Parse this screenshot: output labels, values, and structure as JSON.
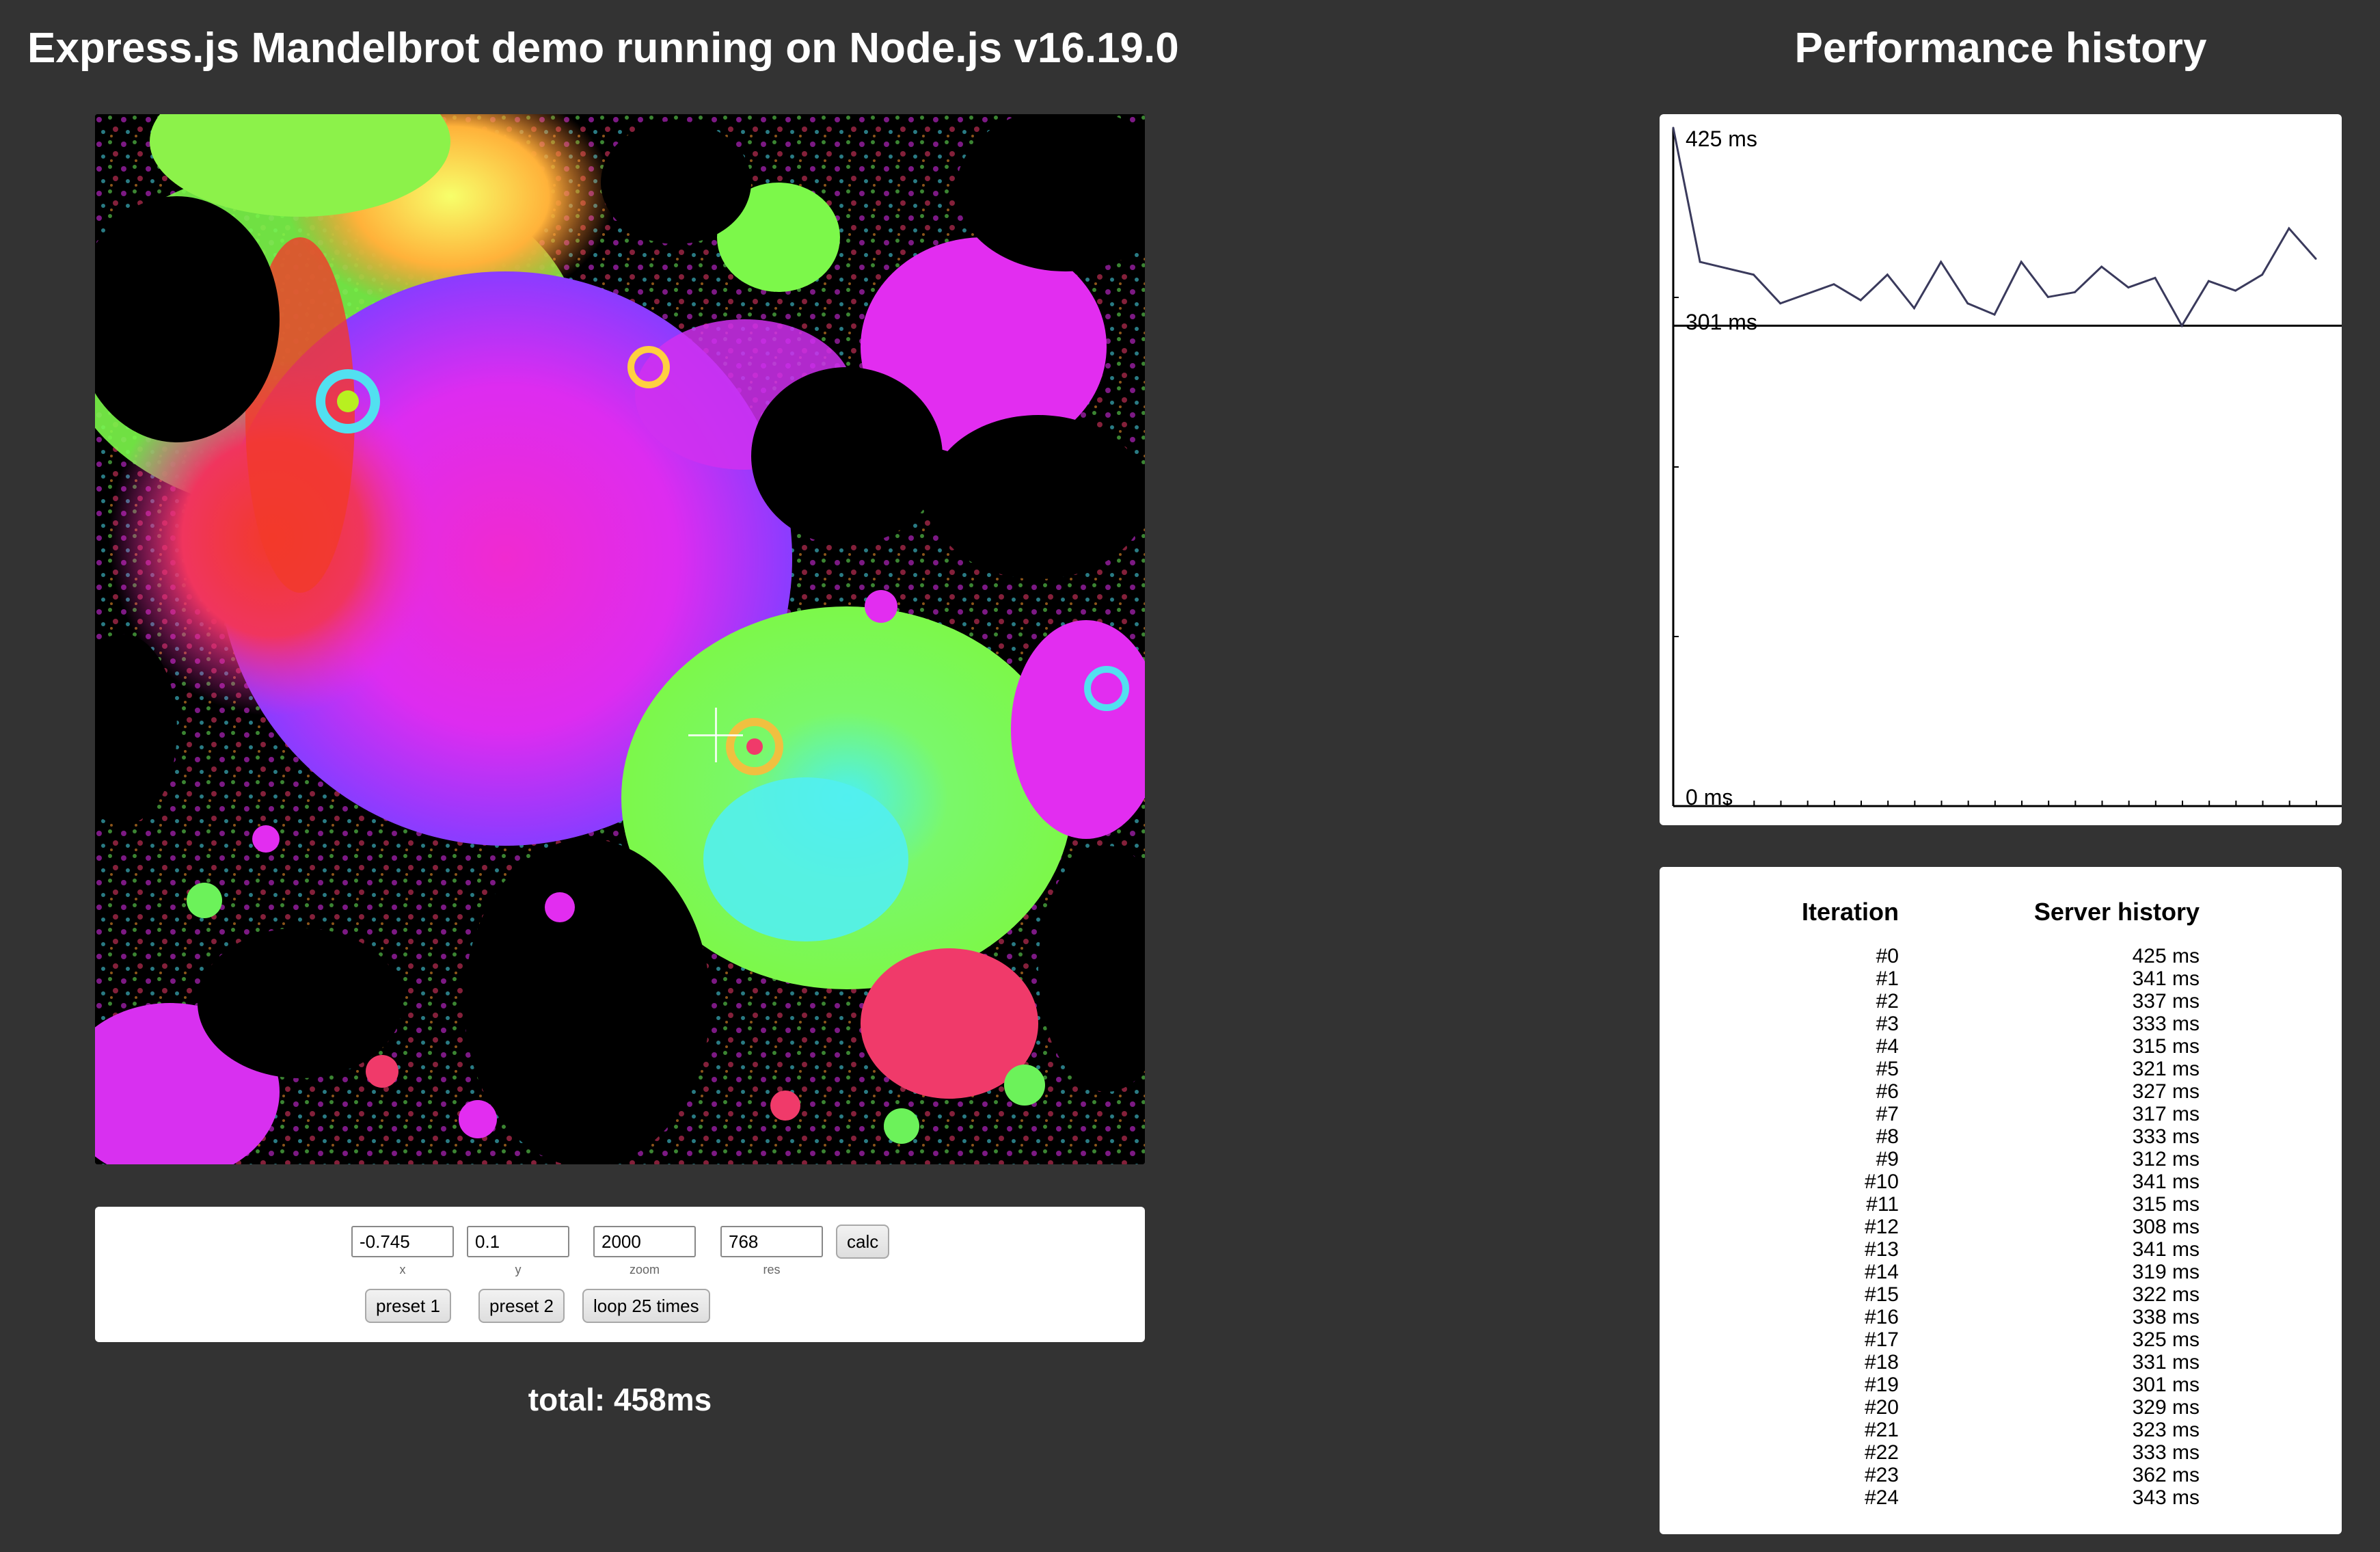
{
  "left_title": "Express.js Mandelbrot demo running on Node.js v16.19.0",
  "right_title": "Performance history",
  "fractal_icon": "mandelbrot-render",
  "controls": {
    "x": {
      "value": "-0.745",
      "label": "x"
    },
    "y": {
      "value": "0.1",
      "label": "y"
    },
    "zoom": {
      "value": "2000",
      "label": "zoom"
    },
    "res": {
      "value": "768",
      "label": "res"
    },
    "calc_label": "calc",
    "preset1_label": "preset 1",
    "preset2_label": "preset 2",
    "loop_label": "loop 25 times"
  },
  "total": "total: 458ms",
  "chart_data": {
    "type": "line",
    "title": "",
    "xlabel": "",
    "ylabel": "",
    "x": [
      0,
      1,
      2,
      3,
      4,
      5,
      6,
      7,
      8,
      9,
      10,
      11,
      12,
      13,
      14,
      15,
      16,
      17,
      18,
      19,
      20,
      21,
      22,
      23,
      24
    ],
    "series": [
      {
        "values": [
          425,
          341,
          337,
          333,
          315,
          321,
          327,
          317,
          333,
          312,
          341,
          315,
          308,
          341,
          319,
          322,
          338,
          325,
          331,
          301,
          329,
          323,
          333,
          362,
          343
        ]
      }
    ],
    "ylim": [
      0,
      425
    ],
    "annotations": {
      "max_label": "425 ms",
      "min_label": "301 ms",
      "zero_label": "0 ms"
    },
    "max_value": 425,
    "min_value": 301,
    "line_color": "#3a3a5c",
    "grid": false
  },
  "table": {
    "headers": [
      "Iteration",
      "Server history"
    ],
    "rows": [
      [
        "#0",
        "425 ms"
      ],
      [
        "#1",
        "341 ms"
      ],
      [
        "#2",
        "337 ms"
      ],
      [
        "#3",
        "333 ms"
      ],
      [
        "#4",
        "315 ms"
      ],
      [
        "#5",
        "321 ms"
      ],
      [
        "#6",
        "327 ms"
      ],
      [
        "#7",
        "317 ms"
      ],
      [
        "#8",
        "333 ms"
      ],
      [
        "#9",
        "312 ms"
      ],
      [
        "#10",
        "341 ms"
      ],
      [
        "#11",
        "315 ms"
      ],
      [
        "#12",
        "308 ms"
      ],
      [
        "#13",
        "341 ms"
      ],
      [
        "#14",
        "319 ms"
      ],
      [
        "#15",
        "322 ms"
      ],
      [
        "#16",
        "338 ms"
      ],
      [
        "#17",
        "325 ms"
      ],
      [
        "#18",
        "331 ms"
      ],
      [
        "#19",
        "301 ms"
      ],
      [
        "#20",
        "329 ms"
      ],
      [
        "#21",
        "323 ms"
      ],
      [
        "#22",
        "333 ms"
      ],
      [
        "#23",
        "362 ms"
      ],
      [
        "#24",
        "343 ms"
      ]
    ]
  }
}
